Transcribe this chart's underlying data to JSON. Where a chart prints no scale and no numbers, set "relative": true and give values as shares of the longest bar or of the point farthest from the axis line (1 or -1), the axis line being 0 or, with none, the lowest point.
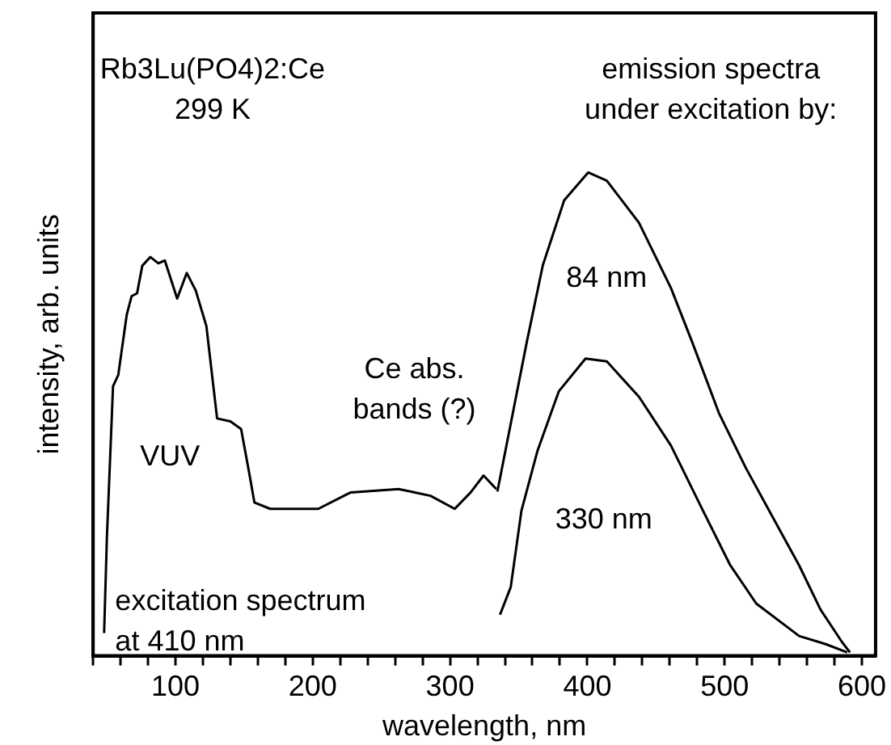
{
  "chart_data": {
    "type": "line",
    "relative": true,
    "xlabel": "wavelength, nm",
    "ylabel": "intensity, arb. units",
    "xlim": [
      40,
      610
    ],
    "xticks": [
      {
        "value": 40,
        "label": null
      },
      {
        "value": 60,
        "label": null
      },
      {
        "value": 80,
        "label": null
      },
      100,
      {
        "value": 120,
        "label": null
      },
      {
        "value": 140,
        "label": null
      },
      {
        "value": 160,
        "label": null
      },
      {
        "value": 180,
        "label": null
      },
      200,
      {
        "value": 220,
        "label": null
      },
      {
        "value": 240,
        "label": null
      },
      {
        "value": 260,
        "label": null
      },
      {
        "value": 280,
        "label": null
      },
      300,
      {
        "value": 320,
        "label": null
      },
      {
        "value": 340,
        "label": null
      },
      {
        "value": 360,
        "label": null
      },
      {
        "value": 380,
        "label": null
      },
      400,
      {
        "value": 420,
        "label": null
      },
      {
        "value": 440,
        "label": null
      },
      {
        "value": 460,
        "label": null
      },
      {
        "value": 480,
        "label": null
      },
      500,
      {
        "value": 520,
        "label": null
      },
      {
        "value": 540,
        "label": null
      },
      {
        "value": 560,
        "label": null
      },
      {
        "value": 580,
        "label": null
      },
      600
    ],
    "grid": false,
    "legend": false,
    "marker": "none",
    "line_style": "solid",
    "series": [
      {
        "name": "excitation spectrum\nat 410 nm",
        "color": "#000000",
        "x": [
          48,
          50,
          54.5,
          58.3,
          64.5,
          68,
          72,
          75.8,
          81.7,
          87.5,
          92.2,
          101.2,
          108.2,
          114.7,
          122.5,
          130.3,
          140,
          147.8,
          153.7,
          157.5,
          169,
          204,
          227.6,
          262.5,
          285.8,
          303.4,
          315,
          324.4,
          333.7
        ],
        "values": [
          0.047,
          0.243,
          0.558,
          0.581,
          0.706,
          0.744,
          0.75,
          0.807,
          0.825,
          0.812,
          0.818,
          0.739,
          0.792,
          0.756,
          0.682,
          0.491,
          0.485,
          0.469,
          0.378,
          0.317,
          0.304,
          0.304,
          0.338,
          0.345,
          0.331,
          0.304,
          0.338,
          0.373,
          0.345
        ]
      },
      {
        "name": "84 nm",
        "color": "#000000",
        "x": [
          334.5,
          344.2,
          355.9,
          367.6,
          383.1,
          400.6,
          414.2,
          437.6,
          460.9,
          476.4,
          495.9,
          515.4,
          534.8,
          554.3,
          569.8,
          585.4,
          591.3
        ],
        "values": [
          0.34,
          0.48,
          0.649,
          0.808,
          0.942,
          1.0,
          0.983,
          0.896,
          0.761,
          0.649,
          0.502,
          0.389,
          0.288,
          0.187,
          0.096,
          0.029,
          0.007
        ]
      },
      {
        "name": "330 nm",
        "color": "#000000",
        "x": [
          336.4,
          344.2,
          352,
          363.7,
          379.2,
          398.7,
          414.2,
          437.6,
          460.9,
          484.3,
          503.8,
          523.1,
          554.3,
          573.8,
          589.3
        ],
        "values": [
          0.085,
          0.142,
          0.3,
          0.424,
          0.547,
          0.615,
          0.609,
          0.536,
          0.435,
          0.3,
          0.189,
          0.108,
          0.041,
          0.024,
          0.007
        ]
      }
    ],
    "annotations": [
      "Rb3Lu(PO4)2:Ce\n299 K",
      "emission spectra\nunder excitation by:",
      "VUV",
      "Ce abs.\nbands (?)"
    ]
  }
}
